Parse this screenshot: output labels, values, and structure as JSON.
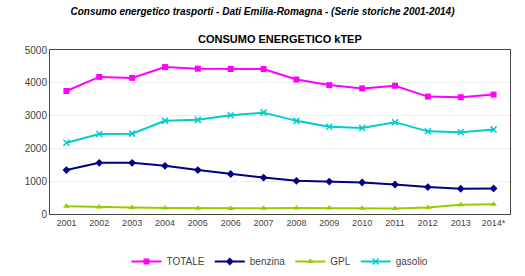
{
  "chart_data": {
    "type": "line",
    "title": "Consumo energetico trasporti - Dati Emilia-Romagna - (Serie storiche 2001-2014)",
    "subtitle": "CONSUMO ENERGETICO kTEP",
    "categories": [
      "2001",
      "2002",
      "2003",
      "2004",
      "2005",
      "2006",
      "2007",
      "2008",
      "2009",
      "2010",
      "2011",
      "2012",
      "2013",
      "2014*"
    ],
    "series": [
      {
        "name": "TOTALE",
        "color": "#FF00FF",
        "marker": "square",
        "values": [
          3750,
          4180,
          4150,
          4480,
          4430,
          4420,
          4420,
          4100,
          3930,
          3830,
          3910,
          3580,
          3560,
          3640
        ]
      },
      {
        "name": "benzina",
        "color": "#000080",
        "marker": "diamond",
        "values": [
          1340,
          1560,
          1560,
          1470,
          1340,
          1220,
          1110,
          1010,
          990,
          960,
          900,
          820,
          770,
          780
        ]
      },
      {
        "name": "GPL",
        "color": "#99CC00",
        "marker": "triangle",
        "values": [
          240,
          210,
          200,
          180,
          175,
          170,
          175,
          185,
          185,
          175,
          170,
          200,
          280,
          295
        ]
      },
      {
        "name": "gasolio",
        "color": "#00CCCC",
        "marker": "x",
        "values": [
          2170,
          2440,
          2450,
          2840,
          2870,
          3010,
          3090,
          2840,
          2660,
          2620,
          2800,
          2520,
          2490,
          2580
        ]
      }
    ],
    "ylim": [
      0,
      5000
    ],
    "yticks": [
      0,
      1000,
      2000,
      3000,
      4000,
      5000
    ],
    "grid": true,
    "legend": "bottom"
  }
}
